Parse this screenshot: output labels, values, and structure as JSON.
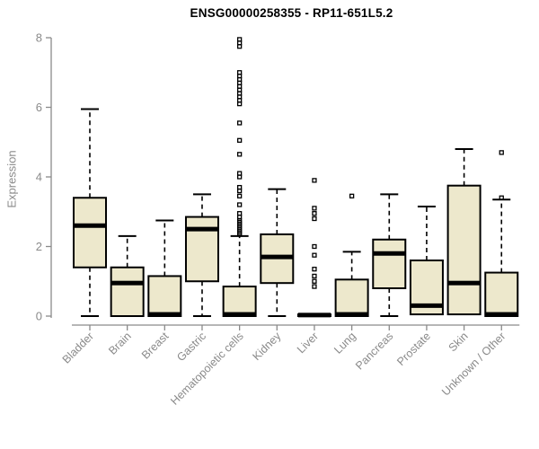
{
  "title": "ENSG00000258355 - RP11-651L5.2",
  "colors": {
    "background": "#FFFFFF",
    "box_fill": "#EDE8CC",
    "box_border": "#000000",
    "median": "#000000",
    "whisker": "#000000",
    "outlier": "#000000",
    "axis": "#8A8A8A",
    "tick_label": "#8A8A8A",
    "title": "#000000"
  },
  "chart_data": {
    "type": "boxplot",
    "title": "ENSG00000258355 - RP11-651L5.2",
    "xlabel": "",
    "ylabel": "Expression",
    "ylim": [
      0,
      8
    ],
    "yticks": [
      0,
      2,
      4,
      6,
      8
    ],
    "grid": false,
    "legend": false,
    "categories": [
      "Bladder",
      "Brain",
      "Breast",
      "Gastric",
      "Hematopoietic cells",
      "Kidney",
      "Liver",
      "Lung",
      "Pancreas",
      "Prostate",
      "Skin",
      "Unknown / Other"
    ],
    "boxes": [
      {
        "category": "Bladder",
        "whisker_low": 0,
        "q1": 1.4,
        "median": 2.6,
        "q3": 3.4,
        "whisker_high": 5.95,
        "outliers": []
      },
      {
        "category": "Brain",
        "whisker_low": 0,
        "q1": 0,
        "median": 0.95,
        "q3": 1.4,
        "whisker_high": 2.3,
        "outliers": []
      },
      {
        "category": "Breast",
        "whisker_low": 0,
        "q1": 0,
        "median": 0.05,
        "q3": 1.15,
        "whisker_high": 2.75,
        "outliers": []
      },
      {
        "category": "Gastric",
        "whisker_low": 0,
        "q1": 1.0,
        "median": 2.5,
        "q3": 2.85,
        "whisker_high": 3.5,
        "outliers": []
      },
      {
        "category": "Hematopoietic cells",
        "whisker_low": 0,
        "q1": 0,
        "median": 0.05,
        "q3": 0.85,
        "whisker_high": 2.3,
        "outliers": [
          2.35,
          2.4,
          2.45,
          2.5,
          2.55,
          2.6,
          2.65,
          2.7,
          2.75,
          2.85,
          2.95,
          3.2,
          3.45,
          3.6,
          3.7,
          4.0,
          4.1,
          4.65,
          5.05,
          5.55,
          6.1,
          6.2,
          6.3,
          6.4,
          6.5,
          6.6,
          6.7,
          6.8,
          6.9,
          7.0,
          7.75,
          7.85,
          7.95
        ]
      },
      {
        "category": "Kidney",
        "whisker_low": 0,
        "q1": 0.95,
        "median": 1.7,
        "q3": 2.35,
        "whisker_high": 3.65,
        "outliers": []
      },
      {
        "category": "Liver",
        "whisker_low": 0,
        "q1": 0,
        "median": 0.03,
        "q3": 0.05,
        "whisker_high": 0.05,
        "outliers": [
          0.85,
          1.0,
          1.15,
          1.35,
          1.75,
          2.0,
          2.8,
          2.95,
          3.1,
          3.9
        ]
      },
      {
        "category": "Lung",
        "whisker_low": 0,
        "q1": 0,
        "median": 0.05,
        "q3": 1.05,
        "whisker_high": 1.85,
        "outliers": [
          3.45
        ]
      },
      {
        "category": "Pancreas",
        "whisker_low": 0,
        "q1": 0.8,
        "median": 1.8,
        "q3": 2.2,
        "whisker_high": 3.5,
        "outliers": []
      },
      {
        "category": "Prostate",
        "whisker_low": 0.05,
        "q1": 0.05,
        "median": 0.3,
        "q3": 1.6,
        "whisker_high": 3.15,
        "outliers": []
      },
      {
        "category": "Skin",
        "whisker_low": 0.05,
        "q1": 0.05,
        "median": 0.95,
        "q3": 3.75,
        "whisker_high": 4.8,
        "outliers": []
      },
      {
        "category": "Unknown / Other",
        "whisker_low": 0,
        "q1": 0,
        "median": 0.05,
        "q3": 1.25,
        "whisker_high": 3.35,
        "outliers": [
          3.4,
          4.7
        ]
      }
    ]
  }
}
